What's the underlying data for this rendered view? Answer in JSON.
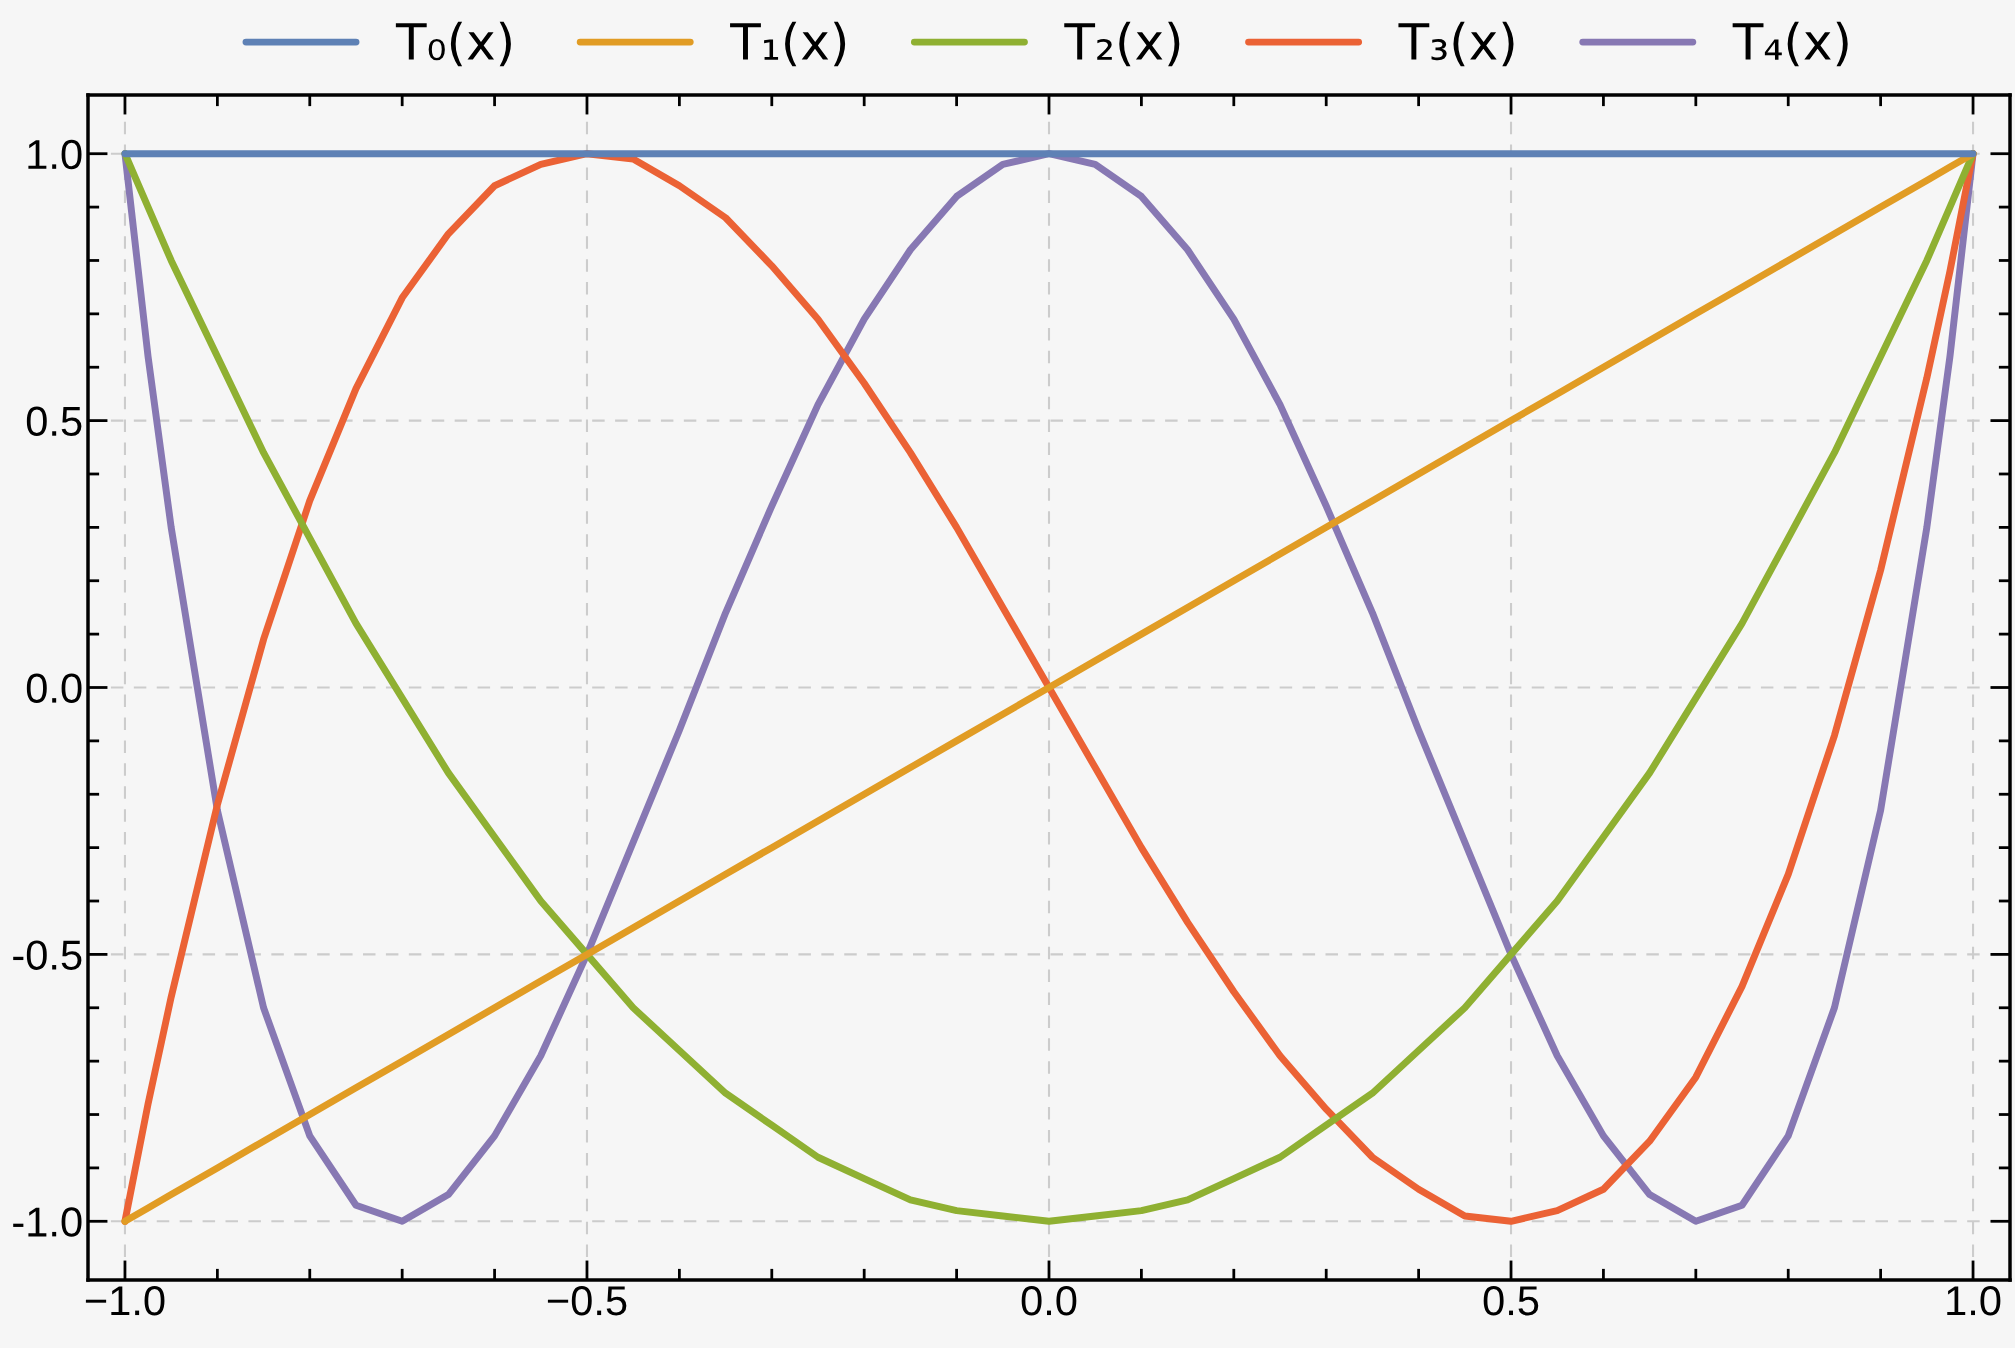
{
  "chart_data": {
    "type": "line",
    "x": [
      -1,
      -0.975,
      -0.95,
      -0.9,
      -0.85,
      -0.8,
      -0.75,
      -0.7,
      -0.65,
      -0.6,
      -0.55,
      -0.5,
      -0.45,
      -0.4,
      -0.35,
      -0.3,
      -0.25,
      -0.2,
      -0.15,
      -0.1,
      -0.05,
      0,
      0.05,
      0.1,
      0.15,
      0.2,
      0.25,
      0.3,
      0.35,
      0.4,
      0.45,
      0.5,
      0.55,
      0.6,
      0.65,
      0.7,
      0.75,
      0.8,
      0.85,
      0.9,
      0.95,
      0.975,
      1
    ],
    "series": [
      {
        "name": "T₀(x)",
        "color": "#5e81b5",
        "values": [
          1,
          1,
          1,
          1,
          1,
          1,
          1,
          1,
          1,
          1,
          1,
          1,
          1,
          1,
          1,
          1,
          1,
          1,
          1,
          1,
          1,
          1,
          1,
          1,
          1,
          1,
          1,
          1,
          1,
          1,
          1,
          1,
          1,
          1,
          1,
          1,
          1,
          1,
          1,
          1,
          1,
          1,
          1
        ]
      },
      {
        "name": "T₁(x)",
        "color": "#e19c24",
        "values": [
          -1,
          -0.975,
          -0.95,
          -0.9,
          -0.85,
          -0.8,
          -0.75,
          -0.7,
          -0.65,
          -0.6,
          -0.55,
          -0.5,
          -0.45,
          -0.4,
          -0.35,
          -0.3,
          -0.25,
          -0.2,
          -0.15,
          -0.1,
          -0.05,
          0,
          0.05,
          0.1,
          0.15,
          0.2,
          0.25,
          0.3,
          0.35,
          0.4,
          0.45,
          0.5,
          0.55,
          0.6,
          0.65,
          0.7,
          0.75,
          0.8,
          0.85,
          0.9,
          0.95,
          0.975,
          1
        ]
      },
      {
        "name": "T₂(x)",
        "color": "#8fb032",
        "values": [
          1,
          0.9,
          0.8,
          0.62,
          0.44,
          0.28,
          0.12,
          -0.02,
          -0.16,
          -0.28,
          -0.4,
          -0.5,
          -0.6,
          -0.68,
          -0.76,
          -0.82,
          -0.88,
          -0.92,
          -0.96,
          -0.98,
          -0.99,
          -1,
          -0.99,
          -0.98,
          -0.96,
          -0.92,
          -0.88,
          -0.82,
          -0.76,
          -0.68,
          -0.6,
          -0.5,
          -0.4,
          -0.28,
          -0.16,
          -0.02,
          0.12,
          0.28,
          0.44,
          0.62,
          0.8,
          0.9,
          1
        ]
      },
      {
        "name": "T₃(x)",
        "color": "#eb6235",
        "values": [
          -1,
          -0.78,
          -0.58,
          -0.22,
          0.09,
          0.35,
          0.56,
          0.73,
          0.85,
          0.94,
          0.98,
          1,
          0.99,
          0.94,
          0.88,
          0.79,
          0.69,
          0.57,
          0.44,
          0.3,
          0.15,
          0,
          -0.15,
          -0.3,
          -0.44,
          -0.57,
          -0.69,
          -0.79,
          -0.88,
          -0.94,
          -0.99,
          -1,
          -0.98,
          -0.94,
          -0.85,
          -0.73,
          -0.56,
          -0.35,
          -0.09,
          0.22,
          0.58,
          0.78,
          1
        ]
      },
      {
        "name": "T₄(x)",
        "color": "#8778b3",
        "values": [
          1,
          0.62,
          0.3,
          -0.23,
          -0.6,
          -0.84,
          -0.97,
          -1,
          -0.95,
          -0.84,
          -0.69,
          -0.5,
          -0.29,
          -0.08,
          0.14,
          0.34,
          0.53,
          0.69,
          0.82,
          0.92,
          0.98,
          1,
          0.98,
          0.92,
          0.82,
          0.69,
          0.53,
          0.34,
          0.14,
          -0.08,
          -0.29,
          -0.5,
          -0.69,
          -0.84,
          -0.95,
          -1,
          -0.97,
          -0.84,
          -0.6,
          -0.23,
          0.3,
          0.62,
          1
        ]
      }
    ],
    "xlim": [
      -1.04,
      1.04
    ],
    "ylim": [
      -1.11,
      1.11
    ],
    "xticks": [
      {
        "value": -1.0,
        "label": "−1.0"
      },
      {
        "value": -0.9,
        "label": null
      },
      {
        "value": -0.8,
        "label": null
      },
      {
        "value": -0.7,
        "label": null
      },
      {
        "value": -0.6,
        "label": null
      },
      {
        "value": -0.5,
        "label": "−0.5"
      },
      {
        "value": -0.4,
        "label": null
      },
      {
        "value": -0.3,
        "label": null
      },
      {
        "value": -0.2,
        "label": null
      },
      {
        "value": -0.1,
        "label": null
      },
      {
        "value": 0,
        "label": "0.0"
      },
      {
        "value": 0.1,
        "label": null
      },
      {
        "value": 0.2,
        "label": null
      },
      {
        "value": 0.3,
        "label": null
      },
      {
        "value": 0.4,
        "label": null
      },
      {
        "value": 0.5,
        "label": "0.5"
      },
      {
        "value": 0.6,
        "label": null
      },
      {
        "value": 0.7,
        "label": null
      },
      {
        "value": 0.8,
        "label": null
      },
      {
        "value": 0.9,
        "label": null
      },
      {
        "value": 1.0,
        "label": "1.0"
      }
    ],
    "yticks": [
      {
        "value": -1.0,
        "label": "-1.0"
      },
      {
        "value": -0.9,
        "label": null
      },
      {
        "value": -0.8,
        "label": null
      },
      {
        "value": -0.7,
        "label": null
      },
      {
        "value": -0.6,
        "label": null
      },
      {
        "value": -0.5,
        "label": "-0.5"
      },
      {
        "value": -0.4,
        "label": null
      },
      {
        "value": -0.3,
        "label": null
      },
      {
        "value": -0.2,
        "label": null
      },
      {
        "value": -0.1,
        "label": null
      },
      {
        "value": 0,
        "label": "0.0"
      },
      {
        "value": 0.1,
        "label": null
      },
      {
        "value": 0.2,
        "label": null
      },
      {
        "value": 0.3,
        "label": null
      },
      {
        "value": 0.4,
        "label": null
      },
      {
        "value": 0.5,
        "label": "0.5"
      },
      {
        "value": 0.6,
        "label": null
      },
      {
        "value": 0.7,
        "label": null
      },
      {
        "value": 0.8,
        "label": null
      },
      {
        "value": 0.9,
        "label": null
      },
      {
        "value": 1.0,
        "label": "1.0"
      }
    ],
    "grid": true,
    "legend": "top",
    "line_style": "solid",
    "marker": "none"
  }
}
